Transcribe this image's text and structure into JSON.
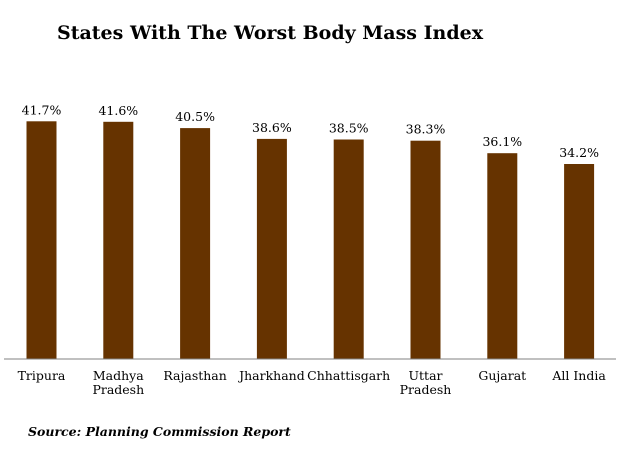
{
  "chart_data": {
    "type": "bar",
    "title": "States With The Worst Body Mass Index",
    "categories": [
      "Tripura",
      "Madhya\nPradesh",
      "Rajasthan",
      "Jharkhand",
      "Chhattisgarh",
      "Uttar\nPradesh",
      "Gujarat",
      "All India"
    ],
    "values": [
      41.7,
      41.6,
      40.5,
      38.6,
      38.5,
      38.3,
      36.1,
      34.2
    ],
    "value_labels": [
      "41.7%",
      "41.6%",
      "40.5%",
      "38.6%",
      "38.5%",
      "38.3%",
      "36.1%",
      "34.2%"
    ],
    "xlabel": "",
    "ylabel": "",
    "ylim": [
      0,
      42.8
    ],
    "grid": false,
    "bar_color": "#663300",
    "source": "Source: Planning Commission Report"
  }
}
